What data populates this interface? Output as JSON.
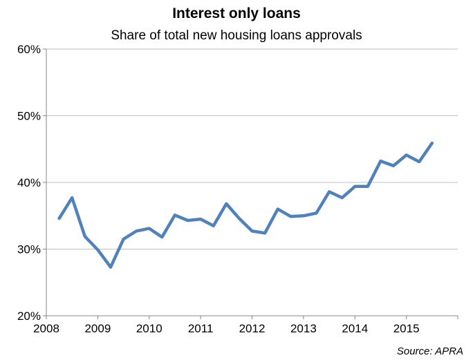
{
  "chart_data": {
    "type": "line",
    "title": "Interest only loans",
    "subtitle": "Share of total new housing loans approvals",
    "source": "Source: APRA",
    "xlabel": "",
    "ylabel": "",
    "x_ticks": [
      "2008",
      "2009",
      "2010",
      "2011",
      "2012",
      "2013",
      "2014",
      "2015"
    ],
    "x_tick_values": [
      2008,
      2009,
      2010,
      2011,
      2012,
      2013,
      2014,
      2015
    ],
    "y_ticks": [
      "20%",
      "30%",
      "40%",
      "50%",
      "60%"
    ],
    "y_tick_values": [
      20,
      30,
      40,
      50,
      60
    ],
    "xlim": [
      2008,
      2016
    ],
    "ylim": [
      20,
      60
    ],
    "grid": "horizontal",
    "line_color": "#4f81bd",
    "series": [
      {
        "x": [
          2008.25,
          2008.5,
          2008.75,
          2009.0,
          2009.25,
          2009.5,
          2009.75,
          2010.0,
          2010.25,
          2010.5,
          2010.75,
          2011.0,
          2011.25,
          2011.5,
          2011.75,
          2012.0,
          2012.25,
          2012.5,
          2012.75,
          2013.0,
          2013.25,
          2013.5,
          2013.75,
          2014.0,
          2014.25,
          2014.5,
          2014.75,
          2015.0,
          2015.25,
          2015.5
        ],
        "values": [
          34.6,
          37.7,
          31.9,
          29.9,
          27.3,
          31.5,
          32.7,
          33.1,
          31.8,
          35.1,
          34.3,
          34.5,
          33.5,
          36.8,
          34.6,
          32.7,
          32.4,
          36.0,
          34.9,
          35.0,
          35.4,
          38.6,
          37.7,
          39.4,
          39.4,
          43.2,
          42.5,
          44.1,
          43.1,
          45.9
        ]
      }
    ]
  }
}
